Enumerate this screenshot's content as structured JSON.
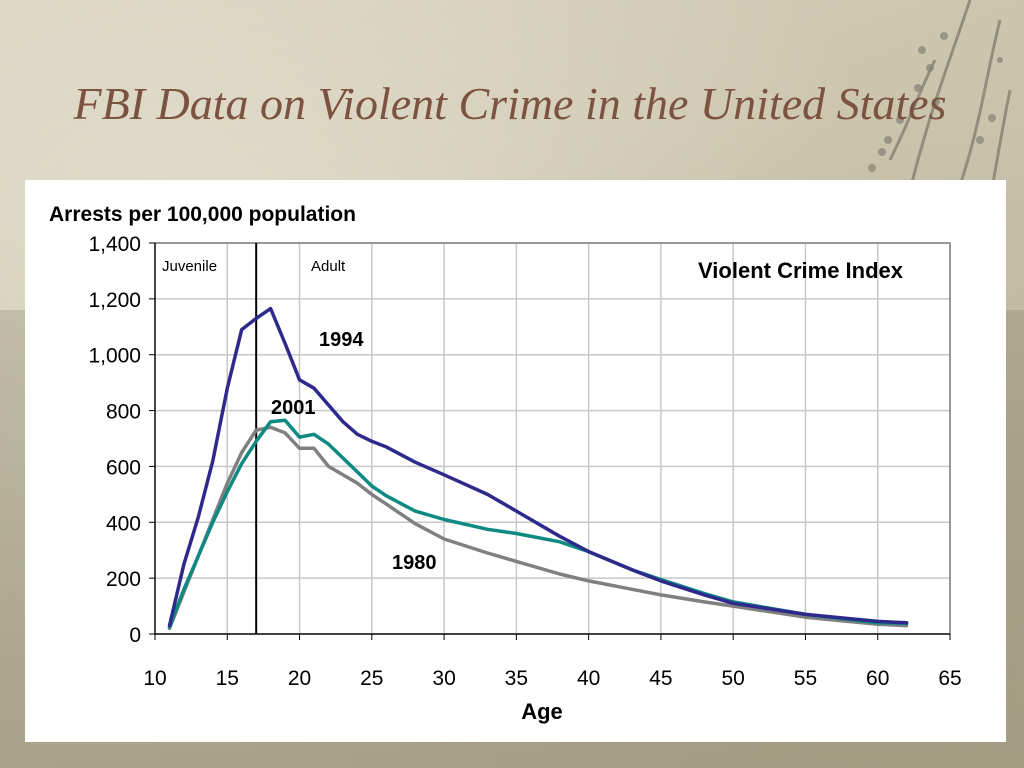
{
  "slide": {
    "title": "FBI Data on Violent Crime in the United States"
  },
  "colors": {
    "series_1994": "#2e2a8c",
    "series_2001": "#0f8a83",
    "series_1980": "#808080",
    "title": "#7b5340"
  },
  "chart_data": {
    "type": "line",
    "title": "Violent Crime Index",
    "ylabel": "Arrests per 100,000 population",
    "xlabel": "Age",
    "xlim": [
      10,
      65
    ],
    "ylim": [
      0,
      1400
    ],
    "xticks": [
      "10",
      "15",
      "20",
      "25",
      "30",
      "35",
      "40",
      "45",
      "50",
      "55",
      "60",
      "65"
    ],
    "yticks": [
      "0",
      "200",
      "400",
      "600",
      "800",
      "1,000",
      "1,200",
      "1,400"
    ],
    "grid": true,
    "annotations": [
      {
        "text": "Juvenile"
      },
      {
        "text": "Adult"
      }
    ],
    "divider_age": 17,
    "series": [
      {
        "name": "1994",
        "color": "#2e2a8c",
        "x": [
          11,
          12,
          13,
          14,
          15,
          16,
          17,
          18,
          19,
          20,
          21,
          22,
          23,
          24,
          25,
          26,
          28,
          30,
          33,
          35,
          38,
          40,
          43,
          45,
          48,
          50,
          55,
          60,
          62
        ],
        "y": [
          30,
          250,
          420,
          620,
          880,
          1090,
          1130,
          1165,
          1040,
          910,
          880,
          820,
          760,
          715,
          690,
          670,
          615,
          570,
          500,
          440,
          350,
          295,
          230,
          190,
          140,
          110,
          70,
          45,
          40
        ]
      },
      {
        "name": "2001",
        "color": "#0f8a83",
        "x": [
          11,
          12,
          13,
          14,
          15,
          16,
          17,
          18,
          19,
          20,
          21,
          22,
          23,
          24,
          25,
          26,
          28,
          30,
          33,
          35,
          38,
          40,
          43,
          45,
          48,
          50,
          55,
          60,
          62
        ],
        "y": [
          25,
          160,
          280,
          400,
          510,
          610,
          690,
          760,
          765,
          705,
          715,
          680,
          630,
          580,
          530,
          495,
          440,
          410,
          375,
          360,
          330,
          295,
          230,
          195,
          145,
          115,
          70,
          40,
          38
        ]
      },
      {
        "name": "1980",
        "color": "#808080",
        "x": [
          11,
          12,
          13,
          14,
          15,
          16,
          17,
          18,
          19,
          20,
          21,
          22,
          23,
          24,
          25,
          26,
          28,
          30,
          33,
          35,
          38,
          40,
          43,
          45,
          48,
          50,
          55,
          60,
          62
        ],
        "y": [
          20,
          150,
          280,
          410,
          540,
          650,
          730,
          740,
          720,
          665,
          665,
          600,
          570,
          540,
          500,
          465,
          395,
          340,
          290,
          260,
          215,
          190,
          160,
          140,
          115,
          100,
          60,
          35,
          30
        ]
      }
    ]
  }
}
